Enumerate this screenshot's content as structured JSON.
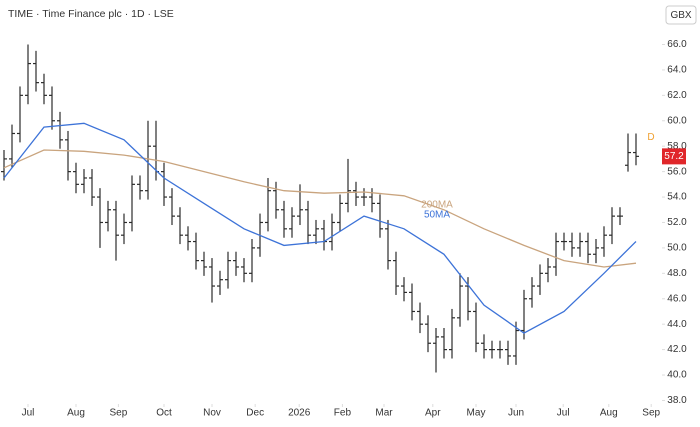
{
  "chart_data": {
    "type": "ohlc",
    "title": "TIME · Time Finance plc · 1D · LSE",
    "currency": "GBX",
    "marker": "D",
    "bar_color": "#2b2b2b",
    "price_label_color": "#e0262a",
    "marker_color": "#f0a030",
    "open": [
      56.0,
      57.0,
      59.0,
      62.0,
      64.5,
      63.0,
      62.0,
      60.0,
      58.5,
      56.0,
      55.0,
      55.5,
      54.0,
      52.0,
      53.0,
      51.0,
      52.0,
      55.0,
      54.5,
      58.0,
      56.0,
      54.0,
      52.5,
      51.0,
      50.5,
      49.0,
      48.5,
      47.0,
      47.5,
      49.0,
      48.5,
      48.0,
      50.0,
      52.0,
      54.5,
      53.0,
      51.5,
      52.5,
      53.0,
      51.0,
      51.5,
      50.5,
      52.0,
      53.5,
      54.5,
      54.0,
      54.0,
      53.5,
      51.5,
      49.0,
      47.0,
      46.5,
      45.0,
      44.0,
      42.5,
      43.0,
      42.0,
      44.5,
      47.0,
      45.0,
      42.5,
      42.0,
      42.0,
      42.0,
      41.5,
      43.5,
      46.0,
      47.0,
      48.0,
      48.5,
      50.5,
      50.5,
      50.0,
      50.5,
      49.5,
      50.0,
      51.0,
      52.5,
      56.5,
      57.5
    ],
    "high": [
      57.7,
      59.7,
      62.7,
      66.0,
      65.5,
      63.7,
      62.7,
      60.7,
      59.2,
      56.7,
      56.2,
      56.2,
      54.7,
      53.7,
      53.7,
      52.7,
      55.7,
      55.7,
      60.0,
      60.0,
      56.7,
      54.7,
      53.2,
      51.7,
      51.2,
      49.7,
      49.2,
      48.2,
      49.7,
      49.7,
      49.2,
      50.7,
      52.7,
      55.5,
      55.2,
      53.7,
      53.2,
      55.0,
      53.7,
      52.2,
      52.2,
      52.7,
      54.2,
      57.0,
      55.2,
      54.7,
      54.7,
      54.2,
      52.2,
      49.7,
      47.7,
      47.2,
      45.7,
      44.7,
      43.7,
      43.7,
      45.2,
      48.0,
      47.7,
      45.7,
      43.2,
      42.7,
      42.7,
      42.7,
      44.2,
      46.7,
      47.7,
      48.7,
      49.2,
      51.2,
      51.2,
      51.2,
      51.2,
      51.2,
      50.7,
      51.7,
      53.2,
      53.2,
      59.0,
      59.0
    ],
    "low": [
      55.3,
      56.3,
      58.3,
      61.3,
      62.3,
      61.3,
      59.3,
      57.8,
      55.3,
      54.3,
      54.3,
      53.3,
      50.0,
      51.3,
      49.0,
      50.3,
      51.3,
      53.8,
      53.8,
      55.3,
      53.3,
      51.8,
      50.3,
      49.8,
      48.3,
      47.8,
      45.7,
      46.3,
      46.8,
      47.8,
      47.3,
      47.3,
      49.3,
      51.3,
      52.3,
      50.8,
      50.8,
      51.8,
      50.3,
      50.3,
      49.8,
      49.8,
      51.3,
      52.8,
      53.3,
      53.3,
      52.8,
      50.8,
      48.3,
      46.3,
      45.8,
      44.3,
      43.3,
      41.8,
      40.2,
      41.3,
      41.3,
      43.8,
      44.3,
      41.8,
      41.3,
      41.3,
      41.3,
      40.8,
      40.8,
      42.8,
      45.3,
      46.3,
      47.3,
      47.8,
      49.8,
      49.3,
      49.3,
      48.8,
      48.8,
      49.3,
      50.3,
      51.8,
      56.0,
      56.5
    ],
    "close": [
      57.0,
      59.0,
      62.0,
      64.5,
      63.0,
      62.0,
      60.0,
      58.5,
      56.0,
      55.0,
      55.5,
      54.0,
      52.0,
      53.0,
      51.0,
      52.0,
      55.0,
      54.5,
      58.0,
      56.0,
      54.0,
      52.5,
      51.0,
      50.5,
      49.0,
      48.5,
      47.0,
      47.5,
      49.0,
      48.5,
      48.0,
      50.0,
      52.0,
      54.5,
      53.0,
      51.5,
      52.5,
      53.0,
      51.0,
      51.5,
      50.5,
      52.0,
      53.5,
      54.5,
      54.0,
      54.0,
      53.5,
      51.5,
      49.0,
      47.0,
      46.5,
      45.0,
      44.0,
      42.5,
      43.0,
      42.0,
      44.5,
      47.0,
      45.0,
      42.5,
      42.0,
      42.0,
      42.0,
      41.5,
      43.5,
      46.0,
      47.0,
      48.0,
      48.5,
      50.5,
      50.5,
      50.0,
      50.5,
      49.5,
      50.0,
      51.0,
      52.5,
      52.5,
      57.5,
      57.2
    ],
    "series": [
      {
        "name": "200MA",
        "color": "#c9a47e",
        "x": [
          0,
          5,
          10,
          15,
          20,
          25,
          30,
          35,
          40,
          45,
          50,
          55,
          60,
          65,
          70,
          75,
          79
        ],
        "values": [
          56.3,
          57.7,
          57.6,
          57.3,
          56.8,
          56.0,
          55.2,
          54.5,
          54.3,
          54.4,
          54.1,
          53.0,
          51.5,
          50.2,
          49.0,
          48.5,
          48.8
        ]
      },
      {
        "name": "50MA",
        "color": "#3d73d8",
        "x": [
          0,
          5,
          10,
          15,
          20,
          25,
          30,
          35,
          40,
          45,
          50,
          55,
          60,
          65,
          70,
          75,
          79
        ],
        "values": [
          55.5,
          59.5,
          59.8,
          58.5,
          55.5,
          53.5,
          51.5,
          50.2,
          50.5,
          52.5,
          51.5,
          49.5,
          45.5,
          43.3,
          45.0,
          48.0,
          50.5
        ]
      }
    ],
    "xlim": [
      -0.5,
      82
    ],
    "ylim": [
      37.8,
      69.5
    ],
    "xticks": [
      {
        "value": 3,
        "label": "Jul"
      },
      {
        "value": 9,
        "label": "Aug"
      },
      {
        "value": 14.3,
        "label": "Sep"
      },
      {
        "value": 20,
        "label": "Oct"
      },
      {
        "value": 26,
        "label": "Nov"
      },
      {
        "value": 31.4,
        "label": "Dec"
      },
      {
        "value": 36.9,
        "label": "2026"
      },
      {
        "value": 42.3,
        "label": "Feb"
      },
      {
        "value": 47.5,
        "label": "Mar"
      },
      {
        "value": 53.6,
        "label": "Apr"
      },
      {
        "value": 59,
        "label": "May"
      },
      {
        "value": 64,
        "label": "Jun"
      },
      {
        "value": 69.9,
        "label": "Jul"
      },
      {
        "value": 75.6,
        "label": "Aug"
      },
      {
        "value": 80.9,
        "label": "Sep"
      }
    ],
    "yticks": [
      {
        "value": 38,
        "label": "38.0"
      },
      {
        "value": 40,
        "label": "40.0"
      },
      {
        "value": 42,
        "label": "42.0"
      },
      {
        "value": 44,
        "label": "44.0"
      },
      {
        "value": 46,
        "label": "46.0"
      },
      {
        "value": 48,
        "label": "48.0"
      },
      {
        "value": 50,
        "label": "50.0"
      },
      {
        "value": 52,
        "label": "52.0"
      },
      {
        "value": 54,
        "label": "54.0"
      },
      {
        "value": 56,
        "label": "56.0"
      },
      {
        "value": 58,
        "label": "58.0"
      },
      {
        "value": 60,
        "label": "60.0"
      },
      {
        "value": 62,
        "label": "62.0"
      },
      {
        "value": 64,
        "label": "64.0"
      },
      {
        "value": 66,
        "label": "66.0"
      }
    ]
  }
}
